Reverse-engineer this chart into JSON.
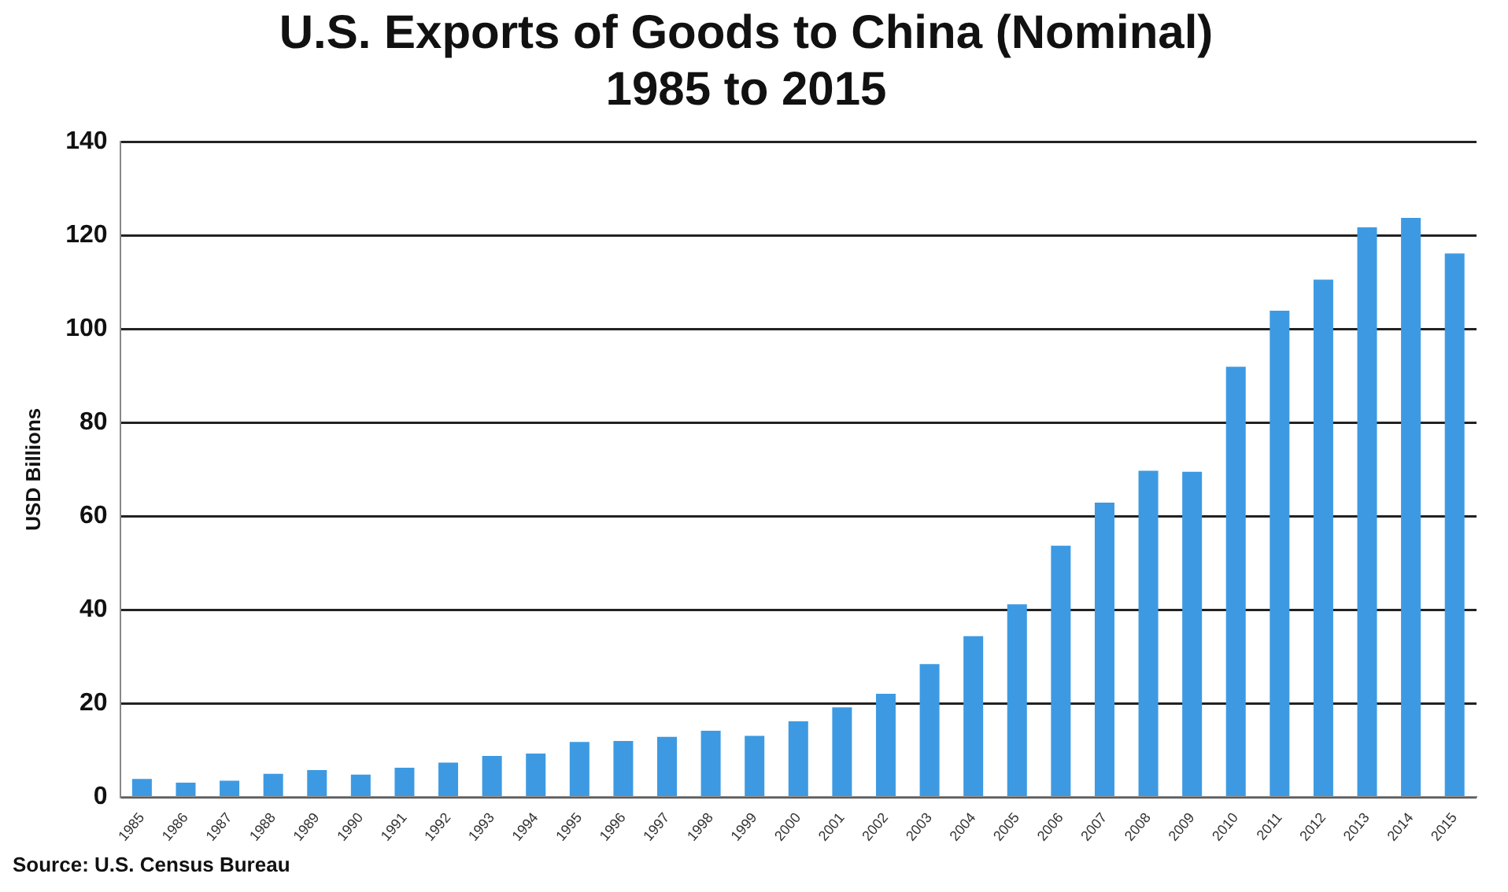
{
  "chart_data": {
    "type": "bar",
    "title": "U.S. Exports of Goods to China (Nominal)\n1985 to 2015",
    "ylabel": "USD Billions",
    "categories": [
      "1985",
      "1986",
      "1987",
      "1988",
      "1989",
      "1990",
      "1991",
      "1992",
      "1993",
      "1994",
      "1995",
      "1996",
      "1997",
      "1998",
      "1999",
      "2000",
      "2001",
      "2002",
      "2003",
      "2004",
      "2005",
      "2006",
      "2007",
      "2008",
      "2009",
      "2010",
      "2011",
      "2012",
      "2013",
      "2014",
      "2015"
    ],
    "values": [
      3.9,
      3.1,
      3.5,
      5.0,
      5.8,
      4.8,
      6.3,
      7.4,
      8.8,
      9.3,
      11.8,
      12.0,
      12.9,
      14.2,
      13.1,
      16.2,
      19.2,
      22.1,
      28.4,
      34.4,
      41.2,
      53.7,
      62.9,
      69.7,
      69.5,
      91.9,
      103.9,
      110.5,
      121.7,
      123.7,
      116.1
    ],
    "color": "#3d9ae2",
    "ylim": [
      0,
      140
    ],
    "yticks": [
      0,
      20,
      40,
      60,
      80,
      100,
      120,
      140
    ],
    "grid": "y",
    "annotations": [
      "Source: U.S. Census Bureau"
    ]
  }
}
